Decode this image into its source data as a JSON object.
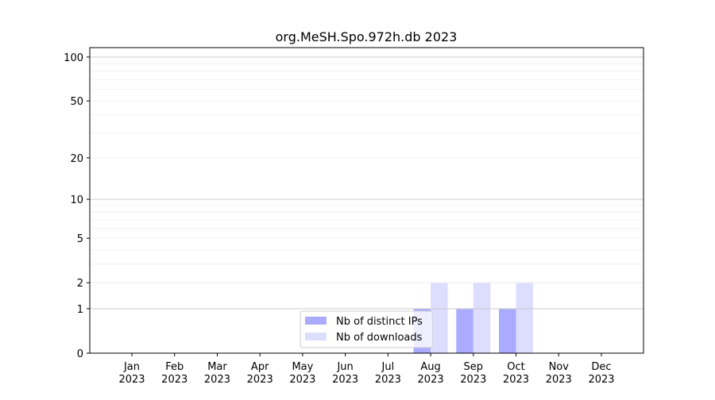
{
  "chart_data": {
    "type": "bar",
    "title": "org.MeSH.Spo.972h.db 2023",
    "xlabel": "",
    "ylabel": "",
    "yscale": "symlog",
    "ylim": [
      0,
      116
    ],
    "yticks": [
      0,
      1,
      2,
      5,
      10,
      20,
      50,
      100
    ],
    "ytick_labels": [
      "0",
      "1",
      "2",
      "5",
      "10",
      "20",
      "50",
      "100"
    ],
    "grid": true,
    "legend_placement": "lower-center",
    "categories": [
      "Jan\n2023",
      "Feb\n2023",
      "Mar\n2023",
      "Apr\n2023",
      "May\n2023",
      "Jun\n2023",
      "Jul\n2023",
      "Aug\n2023",
      "Sep\n2023",
      "Oct\n2023",
      "Nov\n2023",
      "Dec\n2023"
    ],
    "series": [
      {
        "name": "Nb of distinct IPs",
        "color": "#aaaaff",
        "values": [
          0,
          0,
          0,
          0,
          0,
          0,
          0,
          1,
          1,
          1,
          0,
          0
        ]
      },
      {
        "name": "Nb of downloads",
        "color": "#ddddff",
        "values": [
          0,
          0,
          0,
          0,
          0,
          0,
          0,
          2,
          2,
          2,
          0,
          0
        ]
      }
    ]
  }
}
